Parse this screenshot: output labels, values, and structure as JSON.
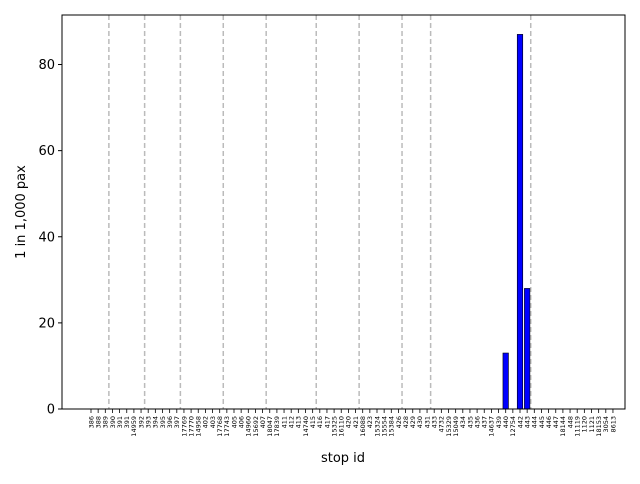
{
  "chart_data": {
    "type": "bar",
    "title": "",
    "xlabel": "stop id",
    "ylabel": "1 in 1,000 pax",
    "ylim": [
      0,
      91.5
    ],
    "yticks": [
      0,
      20,
      40,
      60,
      80
    ],
    "grid": false,
    "legend": "none",
    "bar_color": "#0000ff",
    "bar_edge_color": "#000000",
    "vline_color": "#bbbbbb",
    "categories": [
      "386",
      "388",
      "389",
      "390",
      "391",
      "391",
      "14959",
      "392",
      "393",
      "394",
      "395",
      "396",
      "397",
      "17769",
      "17770",
      "14958",
      "402",
      "403",
      "17768",
      "17743",
      "405",
      "406",
      "14960",
      "15692",
      "407",
      "18047",
      "17839",
      "411",
      "412",
      "413",
      "14740",
      "415",
      "416",
      "417",
      "15325",
      "16110",
      "420",
      "421",
      "16088",
      "423",
      "15324",
      "15554",
      "15384",
      "426",
      "428",
      "429",
      "430",
      "431",
      "433",
      "4732",
      "15329",
      "15049",
      "434",
      "435",
      "436",
      "437",
      "14637",
      "439",
      "440",
      "12754",
      "442",
      "443",
      "444",
      "445",
      "446",
      "447",
      "18144",
      "448",
      "11119",
      "1120",
      "1121",
      "18153",
      "3054",
      "8613"
    ],
    "values": [
      0,
      0,
      0,
      0,
      0,
      0,
      0,
      0,
      0,
      0,
      0,
      0,
      0,
      0,
      0,
      0,
      0,
      0,
      0,
      0,
      0,
      0,
      0,
      0,
      0,
      0,
      0,
      0,
      0,
      0,
      0,
      0,
      0,
      0,
      0,
      0,
      0,
      0,
      0,
      0,
      0,
      0,
      0,
      0,
      0,
      0,
      0,
      0,
      0,
      0,
      0,
      0,
      0,
      0,
      0,
      0,
      0,
      0,
      13,
      0,
      87,
      28,
      0,
      0,
      0,
      0,
      0,
      0,
      0,
      0,
      0,
      0,
      0,
      0
    ],
    "divider_after_index": [
      2,
      7,
      12,
      18,
      24,
      31,
      37,
      43,
      47,
      61
    ]
  }
}
